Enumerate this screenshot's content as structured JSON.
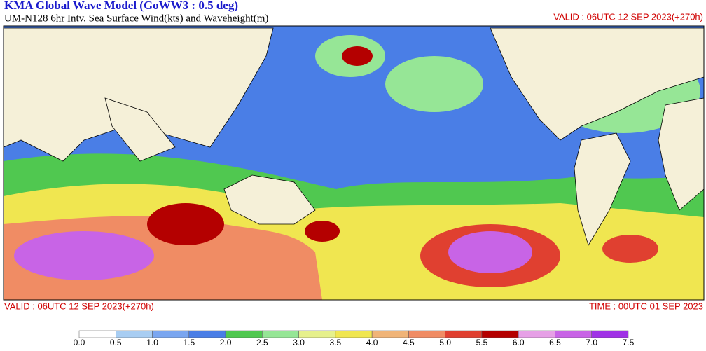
{
  "header": {
    "title": "KMA  Global Wave Model (GoWW3 : 0.5 deg)",
    "subtitle": "UM-N128  6hr Intv. Sea Surface Wind(kts) and Waveheight(m)",
    "valid_top": "VALID : 06UTC 12 SEP 2023(+270h)"
  },
  "footer": {
    "valid": "VALID : 06UTC 12 SEP 2023(+270h)",
    "time": "TIME : 00UTC 01 SEP 2023"
  },
  "colorbar": {
    "labels": [
      "0.0",
      "0.5",
      "1.0",
      "1.5",
      "2.0",
      "2.5",
      "3.0",
      "3.5",
      "4.0",
      "4.5",
      "5.0",
      "5.5",
      "6.0",
      "6.5",
      "7.0",
      "7.5"
    ],
    "colors": [
      "#ffffff",
      "#a8cdf2",
      "#7aa6f0",
      "#4a7ee6",
      "#50c850",
      "#96e696",
      "#e6f08c",
      "#f0e650",
      "#f0b478",
      "#f08c64",
      "#e04030",
      "#b40000",
      "#e6a0e6",
      "#c864e6",
      "#a032e6"
    ]
  }
}
